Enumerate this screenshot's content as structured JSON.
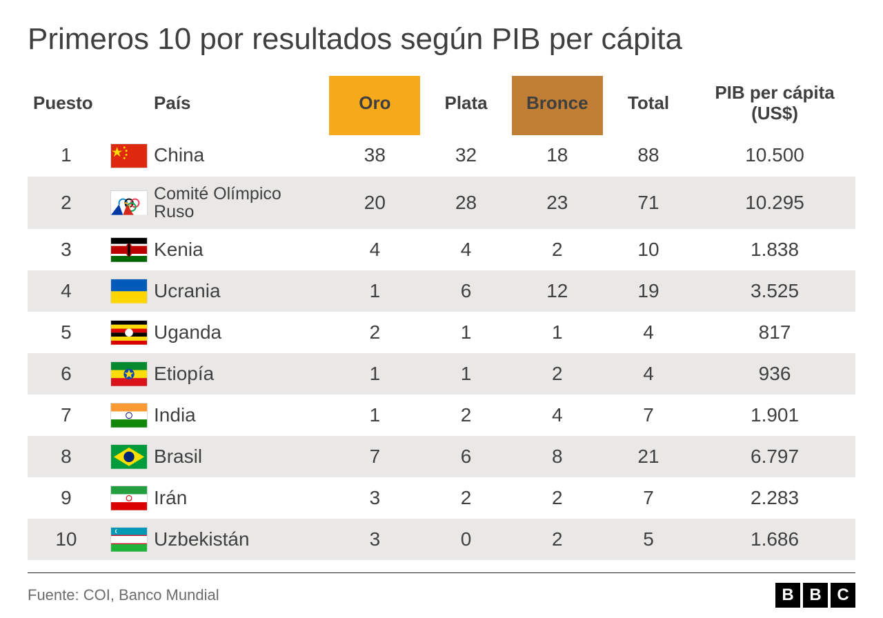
{
  "title": "Primeros 10 por resultados según PIB per cápita",
  "columns": {
    "rank": "Puesto",
    "country": "País",
    "gold": "Oro",
    "silver": "Plata",
    "bronze": "Bronce",
    "total": "Total",
    "gdp": "PIB per cápita (US$)"
  },
  "header_colors": {
    "gold_bg": "#f6a91b",
    "bronze_bg": "#c07f34",
    "text": "#3f3f3f"
  },
  "row_stripe_color": "#e9e8e7",
  "background_color": "#ffffff",
  "rows": [
    {
      "rank": "1",
      "country": "China",
      "gold": "38",
      "silver": "32",
      "bronze": "18",
      "total": "88",
      "gdp": "10.500",
      "flag": "china"
    },
    {
      "rank": "2",
      "country": "Comité Olímpico Ruso",
      "gold": "20",
      "silver": "28",
      "bronze": "23",
      "total": "71",
      "gdp": "10.295",
      "flag": "roc"
    },
    {
      "rank": "3",
      "country": "Kenia",
      "gold": "4",
      "silver": "4",
      "bronze": "2",
      "total": "10",
      "gdp": "1.838",
      "flag": "kenya"
    },
    {
      "rank": "4",
      "country": "Ucrania",
      "gold": "1",
      "silver": "6",
      "bronze": "12",
      "total": "19",
      "gdp": "3.525",
      "flag": "ukraine"
    },
    {
      "rank": "5",
      "country": "Uganda",
      "gold": "2",
      "silver": "1",
      "bronze": "1",
      "total": "4",
      "gdp": "817",
      "flag": "uganda"
    },
    {
      "rank": "6",
      "country": "Etiopía",
      "gold": "1",
      "silver": "1",
      "bronze": "2",
      "total": "4",
      "gdp": "936",
      "flag": "ethiopia"
    },
    {
      "rank": "7",
      "country": "India",
      "gold": "1",
      "silver": "2",
      "bronze": "4",
      "total": "7",
      "gdp": "1.901",
      "flag": "india"
    },
    {
      "rank": "8",
      "country": "Brasil",
      "gold": "7",
      "silver": "6",
      "bronze": "8",
      "total": "21",
      "gdp": "6.797",
      "flag": "brazil"
    },
    {
      "rank": "9",
      "country": "Irán",
      "gold": "3",
      "silver": "2",
      "bronze": "2",
      "total": "7",
      "gdp": "2.283",
      "flag": "iran"
    },
    {
      "rank": "10",
      "country": "Uzbekistán",
      "gold": "3",
      "silver": "0",
      "bronze": "2",
      "total": "5",
      "gdp": "1.686",
      "flag": "uzbekistan"
    }
  ],
  "source": "Fuente: COI, Banco Mundial",
  "brand": {
    "b1": "B",
    "b2": "B",
    "b3": "C"
  },
  "flags_svg": {
    "china": "<svg viewBox='0 0 54 36'><rect width='54' height='36' fill='#de2910'/><polygon points='9,4 11,10 17,10 12,13 14,19 9,15 4,19 6,13 1,10 7,10' fill='#ffde00'/><circle cx='20' cy='5' r='1.5' fill='#ffde00'/><circle cx='23' cy='10' r='1.5' fill='#ffde00'/><circle cx='23' cy='16' r='1.5' fill='#ffde00'/><circle cx='20' cy='21' r='1.5' fill='#ffde00'/></svg>",
    "roc": "<svg viewBox='0 0 54 36'><rect width='54' height='36' fill='#ffffff'/><circle cx='18' cy='18' r='6' fill='none' stroke='#0081c8' stroke-width='2'/><circle cx='27' cy='18' r='6' fill='none' stroke='#000' stroke-width='2'/><circle cx='36' cy='18' r='6' fill='none' stroke='#ee334e' stroke-width='2'/><circle cx='22' cy='24' r='6' fill='none' stroke='#fcb131' stroke-width='2'/><circle cx='31' cy='24' r='6' fill='none' stroke='#00a651' stroke-width='2'/><path d='M0 36 L18 14 L27 36 Z' fill='#ffffff'/><path d='M0 36 L12 20 L18 36 Z' fill='#0039a6'/><path d='M18 36 L24 20 L34 36 Z' fill='#d52b1e'/></svg>",
    "kenya": "<svg viewBox='0 0 54 36'><rect width='54' height='9' fill='#000'/><rect y='9' width='54' height='3' fill='#fff'/><rect y='12' width='54' height='12' fill='#bb0000'/><rect y='24' width='54' height='3' fill='#fff'/><rect y='27' width='54' height='9' fill='#006600'/><ellipse cx='27' cy='18' rx='5' ry='10' fill='#bb0000'/><ellipse cx='27' cy='18' rx='2' ry='10' fill='#000'/></svg>",
    "ukraine": "<svg viewBox='0 0 54 36'><rect width='54' height='18' fill='#005bbb'/><rect y='18' width='54' height='18' fill='#ffd500'/></svg>",
    "uganda": "<svg viewBox='0 0 54 36'><rect width='54' height='6' fill='#000'/><rect y='6' width='54' height='6' fill='#fcdc04'/><rect y='12' width='54' height='6' fill='#d90000'/><rect y='18' width='54' height='6' fill='#000'/><rect y='24' width='54' height='6' fill='#fcdc04'/><rect y='30' width='54' height='6' fill='#d90000'/><circle cx='27' cy='18' r='6' fill='#fff'/></svg>",
    "ethiopia": "<svg viewBox='0 0 54 36'><rect width='54' height='12' fill='#078930'/><rect y='12' width='54' height='12' fill='#fcdd09'/><rect y='24' width='54' height='12' fill='#da121a'/><circle cx='27' cy='18' r='8' fill='#0f47af'/><polygon points='27,11 29,16 34,16 30,19 31,24 27,21 23,24 24,19 20,16 25,16' fill='#fcdd09'/></svg>",
    "india": "<svg viewBox='0 0 54 36'><rect width='54' height='12' fill='#ff9933'/><rect y='12' width='54' height='12' fill='#ffffff'/><rect y='24' width='54' height='12' fill='#138808'/><circle cx='27' cy='18' r='4.5' fill='none' stroke='#000080' stroke-width='1'/></svg>",
    "brazil": "<svg viewBox='0 0 54 36'><rect width='54' height='36' fill='#009b3a'/><polygon points='27,4 50,18 27,32 4,18' fill='#fedf00'/><circle cx='27' cy='18' r='8' fill='#002776'/></svg>",
    "iran": "<svg viewBox='0 0 54 36'><rect width='54' height='12' fill='#239f40'/><rect y='12' width='54' height='12' fill='#ffffff'/><rect y='24' width='54' height='12' fill='#da0000'/><circle cx='27' cy='18' r='4' fill='none' stroke='#da0000' stroke-width='1.2'/></svg>",
    "uzbekistan": "<svg viewBox='0 0 54 36'><rect width='54' height='11' fill='#1eb53a'/><rect width='54' height='25' fill='#ffffff'/><rect width='54' height='11' fill='#0099b5'/><rect y='11' width='54' height='1.5' fill='#ce1126'/><rect y='23.5' width='54' height='1.5' fill='#ce1126'/><rect y='25' width='54' height='11' fill='#1eb53a'/><circle cx='9' cy='5.5' r='3' fill='#fff'/><circle cx='10.5' cy='5.5' r='3' fill='#0099b5'/></svg>"
  }
}
